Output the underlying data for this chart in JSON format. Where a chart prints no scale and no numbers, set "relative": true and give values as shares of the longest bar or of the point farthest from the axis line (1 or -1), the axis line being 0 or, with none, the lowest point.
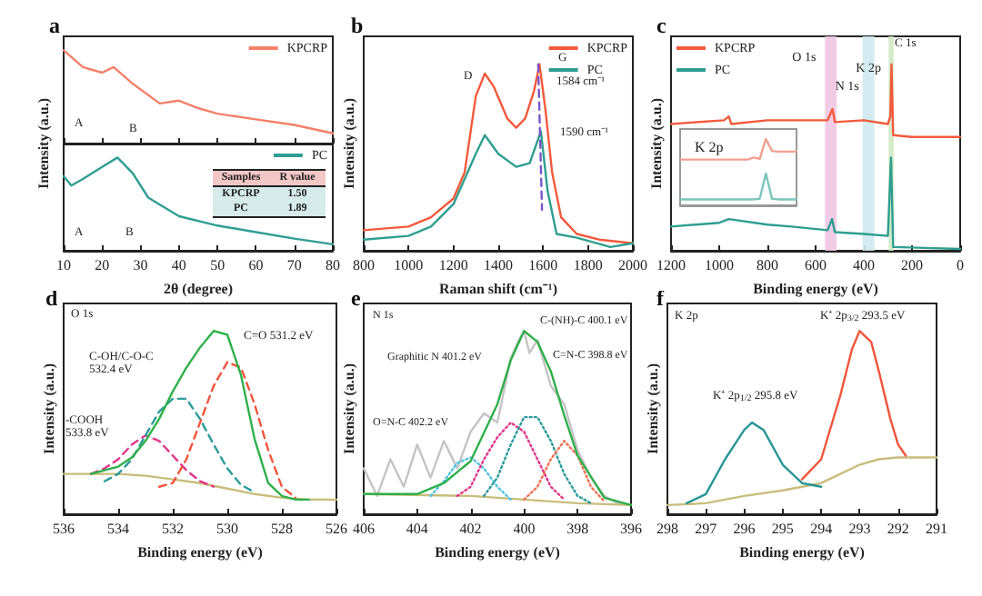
{
  "chart_data": [
    {
      "type": "line",
      "relative": true,
      "title": "a",
      "ylabel": "Intensity (a.u.)",
      "xlim": [
        10,
        80
      ],
      "xticks": [
        10,
        20,
        30,
        40,
        50,
        60,
        70,
        80
      ],
      "tick_labels": false,
      "legend": "top right",
      "series": [
        {
          "name": "KPCRP",
          "color": "#f4806a",
          "x": [
            10,
            15,
            20,
            23,
            28,
            35,
            40,
            45,
            50,
            60,
            70,
            80
          ],
          "values": [
            1,
            0.82,
            0.76,
            0.82,
            0.64,
            0.43,
            0.46,
            0.38,
            0.32,
            0.26,
            0.2,
            0.11
          ]
        }
      ],
      "annotations": [
        "A",
        "B"
      ]
    },
    {
      "type": "line",
      "relative": true,
      "xlabel": "2θ (degree)",
      "xlim": [
        10,
        80
      ],
      "xticks": [
        10,
        20,
        30,
        40,
        50,
        60,
        70,
        80
      ],
      "legend": "top right",
      "series": [
        {
          "name": "PC",
          "color": "#2f9e93",
          "x": [
            10,
            12,
            15,
            20,
            24,
            28,
            32,
            40,
            50,
            60,
            70,
            80
          ],
          "values": [
            0.8,
            0.7,
            0.77,
            0.9,
            1,
            0.83,
            0.57,
            0.37,
            0.27,
            0.2,
            0.13,
            0.07
          ]
        }
      ],
      "annotations": [
        "A",
        "B",
        "Samples",
        "R value",
        "KPCRP",
        "1.50",
        "PC",
        "1.89"
      ]
    },
    {
      "type": "line",
      "relative": true,
      "title": "b",
      "xlabel": "Raman shift (cm⁻¹)",
      "ylabel": "Intensity (a.u.)",
      "xlim": [
        800,
        2000
      ],
      "xticks": [
        800,
        1000,
        1200,
        1400,
        1600,
        1800,
        2000
      ],
      "legend": "top right",
      "series": [
        {
          "name": "KPCRP",
          "color": "#f25a3c",
          "x": [
            800,
            1000,
            1100,
            1200,
            1250,
            1300,
            1340,
            1380,
            1440,
            1480,
            1520,
            1560,
            1584,
            1610,
            1640,
            1680,
            1750,
            1850,
            2000
          ],
          "values": [
            0.11,
            0.13,
            0.18,
            0.28,
            0.42,
            0.83,
            0.95,
            0.88,
            0.71,
            0.66,
            0.71,
            0.86,
            1,
            0.76,
            0.42,
            0.18,
            0.09,
            0.06,
            0.04
          ]
        },
        {
          "name": "PC",
          "color": "#2e9e8f",
          "x": [
            800,
            1000,
            1100,
            1200,
            1300,
            1340,
            1400,
            1480,
            1540,
            1590,
            1620,
            1660,
            1750,
            1900,
            2000
          ],
          "values": [
            0.06,
            0.08,
            0.13,
            0.25,
            0.52,
            0.62,
            0.52,
            0.45,
            0.47,
            0.64,
            0.32,
            0.09,
            0.07,
            0.02,
            0.04
          ]
        },
        {
          "color": "#7a55c8",
          "line_style": "dashed",
          "x": [
            1578,
            1595
          ],
          "values": [
            1,
            0.22
          ]
        }
      ],
      "annotations": [
        "D",
        "G",
        "1584 cm⁻¹",
        "1590 cm⁻¹"
      ]
    },
    {
      "type": "line",
      "relative": true,
      "title": "c",
      "xlabel": "Binding energy (eV)",
      "ylabel": "Intensity (a.u.)",
      "xlim": [
        1200,
        0
      ],
      "xticks": [
        1200,
        1000,
        800,
        600,
        400,
        200,
        0
      ],
      "legend": "top left",
      "series": [
        {
          "name": "KPCRP",
          "color": "#f25a3c",
          "x": [
            1200,
            980,
            960,
            950,
            800,
            550,
            530,
            520,
            400,
            300,
            290,
            285,
            278,
            200,
            0
          ],
          "values": [
            0.68,
            0.7,
            0.72,
            0.68,
            0.7,
            0.7,
            0.76,
            0.69,
            0.7,
            0.68,
            0.72,
            1,
            0.62,
            0.61,
            0.61
          ]
        },
        {
          "name": "PC",
          "color": "#2e9e8f",
          "x": [
            1200,
            1000,
            960,
            800,
            700,
            550,
            532,
            520,
            400,
            300,
            287,
            278,
            0
          ],
          "values": [
            0.13,
            0.15,
            0.17,
            0.14,
            0.13,
            0.11,
            0.17,
            0.1,
            0.09,
            0.08,
            0.5,
            0.02,
            0.01
          ]
        }
      ],
      "bands": [
        {
          "axis": "x",
          "from": 513,
          "to": 561,
          "label": "O 1s",
          "color": "#f1c6e3"
        },
        {
          "axis": "x",
          "from": 356,
          "to": 405,
          "label": "N 1s",
          "color": "#cfe9ef"
        },
        {
          "axis": "x",
          "from": 276,
          "to": 297,
          "label": "K 2p",
          "color": "#cfe8c2"
        }
      ],
      "annotations": [
        "C 1s"
      ]
    },
    {
      "type": "line",
      "relative": true,
      "title": "K 2p",
      "categories": [
        null,
        null,
        null,
        null,
        null,
        null,
        null,
        null,
        null,
        null,
        null,
        null,
        null,
        null,
        null,
        null,
        null,
        null,
        null,
        null
      ],
      "series": [
        {
          "color": "#f4a090",
          "values": [
            0.69,
            0.69,
            0.69,
            0.69,
            0.69,
            0.69,
            0.69,
            0.69,
            0.69,
            0.69,
            0.69,
            0.69,
            0.72,
            0.7,
            1,
            0.82,
            0.81,
            0.81,
            0.81,
            0.81
          ]
        },
        {
          "color": "#7cc4bc",
          "values": [
            0.09,
            0.09,
            0.09,
            0.09,
            0.09,
            0.09,
            0.09,
            0.09,
            0.09,
            0.09,
            0.09,
            0.09,
            0.09,
            0.1,
            0.48,
            0.1,
            0.09,
            0.09,
            0.09,
            0.09
          ]
        }
      ]
    },
    {
      "type": "line",
      "relative": true,
      "title": "d",
      "xlabel": "Binding energy (eV)",
      "ylabel": "Intensity (a.u.)",
      "xlim": [
        536,
        526
      ],
      "xticks": [
        536,
        534,
        532,
        530,
        528,
        526
      ],
      "series": [
        {
          "color": "#c9bd7c",
          "x": [
            536,
            535,
            534,
            533,
            532,
            531,
            530,
            529,
            528,
            527,
            526
          ],
          "values": [
            0.22,
            0.22,
            0.22,
            0.21,
            0.19,
            0.17,
            0.14,
            0.11,
            0.09,
            0.08,
            0.08
          ]
        },
        {
          "color": "#e0358a",
          "line_style": "dashed",
          "x": [
            535,
            534.5,
            534,
            533.5,
            533,
            532.5,
            532,
            531.5,
            531,
            530.5
          ],
          "values": [
            0.22,
            0.25,
            0.3,
            0.38,
            0.43,
            0.4,
            0.32,
            0.24,
            0.18,
            0.15
          ]
        },
        {
          "color": "#2b9a9a",
          "line_style": "dashed",
          "x": [
            534.5,
            534,
            533.5,
            533,
            532.5,
            532,
            531.5,
            531,
            530.5,
            530,
            529.5,
            529
          ],
          "values": [
            0.18,
            0.22,
            0.3,
            0.43,
            0.56,
            0.63,
            0.63,
            0.52,
            0.38,
            0.25,
            0.16,
            0.12
          ]
        },
        {
          "color": "#f0553c",
          "line_style": "dashed",
          "x": [
            532.5,
            532,
            531.5,
            531,
            530.5,
            530,
            529.5,
            529,
            528.5,
            528,
            527.5
          ],
          "values": [
            0.15,
            0.17,
            0.3,
            0.5,
            0.7,
            0.83,
            0.8,
            0.6,
            0.35,
            0.15,
            0.09
          ]
        },
        {
          "color": "#2fb04a",
          "x": [
            535,
            534.5,
            534,
            533.5,
            533,
            532.5,
            532,
            531.5,
            531,
            530.5,
            530,
            529.5,
            529,
            528.5,
            528,
            527.5,
            527
          ],
          "values": [
            0.22,
            0.24,
            0.26,
            0.31,
            0.4,
            0.52,
            0.67,
            0.8,
            0.91,
            1,
            0.98,
            0.76,
            0.41,
            0.17,
            0.1,
            0.08,
            0.08
          ]
        }
      ],
      "annotations": [
        "O 1s",
        "C=O 531.2 eV",
        "C-OH/C-O-C\n532.4 eV",
        "-COOH\n533.8 eV"
      ]
    },
    {
      "type": "line",
      "relative": true,
      "title": "e",
      "xlabel": "Binding energy (eV)",
      "ylabel": "Intensity (a.u.)",
      "xlim": [
        406,
        396
      ],
      "xticks": [
        406,
        404,
        402,
        400,
        398,
        396
      ],
      "series": [
        {
          "color": "#c4c4c4",
          "x": [
            406,
            405.5,
            405,
            404.5,
            404,
            403.5,
            403,
            402.5,
            402,
            401.5,
            401,
            400.5,
            400.2,
            400,
            399.8,
            399.5,
            399,
            398.5,
            398,
            397.5,
            397,
            396.5,
            396
          ],
          "values": [
            0.25,
            0.1,
            0.3,
            0.15,
            0.38,
            0.2,
            0.4,
            0.25,
            0.45,
            0.55,
            0.5,
            0.85,
            0.95,
            1,
            0.88,
            0.95,
            0.7,
            0.6,
            0.35,
            0.2,
            0.1,
            0.06,
            0.05
          ]
        },
        {
          "color": "#c9bd7c",
          "x": [
            406,
            402,
            398,
            396
          ],
          "values": [
            0.11,
            0.1,
            0.06,
            0.05
          ]
        },
        {
          "color": "#4fc3e0",
          "line_style": "dotted",
          "x": [
            403.5,
            403,
            402.5,
            402,
            401.5,
            401,
            400.5
          ],
          "values": [
            0.1,
            0.18,
            0.28,
            0.31,
            0.25,
            0.15,
            0.08
          ]
        },
        {
          "color": "#e0358a",
          "line_style": "dotted",
          "x": [
            402.5,
            402,
            401.5,
            401,
            400.5,
            400,
            399.5,
            399,
            398.5
          ],
          "values": [
            0.1,
            0.15,
            0.3,
            0.42,
            0.5,
            0.45,
            0.3,
            0.15,
            0.08
          ]
        },
        {
          "color": "#2b9a9a",
          "line_style": "dotted",
          "x": [
            401.5,
            401,
            400.5,
            400,
            399.5,
            399,
            398.5,
            398,
            397.5
          ],
          "values": [
            0.1,
            0.2,
            0.38,
            0.53,
            0.53,
            0.4,
            0.22,
            0.1,
            0.06
          ]
        },
        {
          "color": "#f0704f",
          "line_style": "dotted",
          "x": [
            400,
            399.5,
            399,
            398.5,
            398,
            397.5,
            397
          ],
          "values": [
            0.08,
            0.15,
            0.3,
            0.4,
            0.32,
            0.15,
            0.07
          ]
        },
        {
          "color": "#2fb04a",
          "x": [
            406,
            404,
            403,
            402,
            401,
            400.5,
            400,
            399.5,
            399,
            398.5,
            398,
            397,
            396
          ],
          "values": [
            0.11,
            0.11,
            0.17,
            0.29,
            0.6,
            0.84,
            1,
            0.94,
            0.78,
            0.54,
            0.32,
            0.09,
            0.05
          ]
        }
      ],
      "annotations": [
        "N 1s",
        "Graphitic N 401.2 eV",
        "C-(NH)-C 400.1 eV",
        "C=N-C 398.8 eV",
        "O=N-C 402.2 eV"
      ]
    },
    {
      "type": "line",
      "relative": true,
      "title": "f",
      "xlabel": "Binding energy (eV)",
      "ylabel": "Intensity (a.u.)",
      "xlim": [
        298,
        291
      ],
      "xticks": [
        298,
        297,
        296,
        295,
        294,
        293,
        292,
        291
      ],
      "series": [
        {
          "color": "#c9bd7c",
          "x": [
            298,
            297,
            296,
            295,
            294,
            293.5,
            293,
            292.5,
            292,
            291
          ],
          "values": [
            0.05,
            0.06,
            0.1,
            0.13,
            0.17,
            0.22,
            0.27,
            0.3,
            0.31,
            0.31
          ]
        },
        {
          "color": "#2b9595",
          "x": [
            297.5,
            297,
            296.5,
            296,
            295.8,
            295.5,
            295,
            294.5,
            294
          ],
          "values": [
            0.06,
            0.11,
            0.3,
            0.46,
            0.5,
            0.46,
            0.27,
            0.17,
            0.15
          ]
        },
        {
          "color": "#f0553c",
          "x": [
            294.5,
            294,
            293.5,
            293.2,
            293,
            292.7,
            292.5,
            292.2,
            292,
            291.8
          ],
          "values": [
            0.19,
            0.3,
            0.65,
            0.9,
            1,
            0.94,
            0.78,
            0.52,
            0.38,
            0.32
          ]
        }
      ],
      "annotations": [
        "K 2p",
        "K⁺ 2p$_{3/2}$ 293.5 eV",
        "K⁺ 2p$_{1/2}$ 295.8 eV"
      ]
    }
  ]
}
